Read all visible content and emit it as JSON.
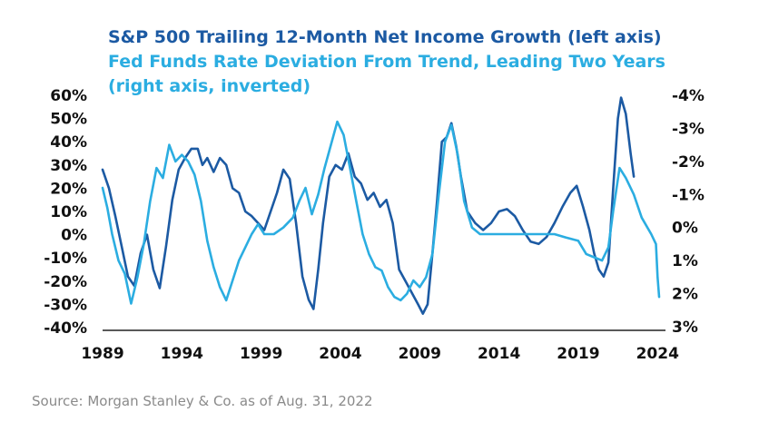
{
  "chart_data": {
    "type": "line",
    "title": [
      "S&P 500 Trailing 12-Month Net Income Growth (left axis)",
      "Fed Funds Rate Deviation From Trend, Leading Two Years",
      "(right axis, inverted)"
    ],
    "source": "Source: Morgan Stanley & Co. as of Aug. 31, 2022",
    "left_axis": {
      "ticks": [
        "60%",
        "50%",
        "40%",
        "30%",
        "20%",
        "10%",
        "0%",
        "-10%",
        "-20%",
        "-30%",
        "-40%"
      ],
      "range": [
        -40,
        60
      ],
      "unit": "%"
    },
    "right_axis": {
      "ticks": [
        "-4%",
        "-3%",
        "-2%",
        "-1%",
        "0%",
        "1%",
        "2%",
        "3%"
      ],
      "range": [
        -4,
        3
      ],
      "inverted": true,
      "unit": "%"
    },
    "x_axis": {
      "ticks": [
        "1989",
        "1994",
        "1999",
        "2004",
        "2009",
        "2014",
        "2019",
        "2024"
      ],
      "range": [
        1989,
        2024.5
      ]
    },
    "grid": false,
    "legend": "title-colored",
    "colors": {
      "series1": "#1c5aa3",
      "series2": "#2bade1",
      "text": "#111111",
      "source": "#8a8a8a"
    },
    "series": [
      {
        "name": "S&P 500 Trailing 12-Month Net Income Growth",
        "axis": "left",
        "color": "#1c5aa3",
        "points": [
          [
            1989.0,
            28
          ],
          [
            1989.4,
            20
          ],
          [
            1989.8,
            8
          ],
          [
            1990.2,
            -5
          ],
          [
            1990.6,
            -18
          ],
          [
            1991.0,
            -22
          ],
          [
            1991.4,
            -8
          ],
          [
            1991.8,
            0
          ],
          [
            1992.2,
            -15
          ],
          [
            1992.6,
            -23
          ],
          [
            1993.0,
            -5
          ],
          [
            1993.4,
            15
          ],
          [
            1993.8,
            28
          ],
          [
            1994.2,
            33
          ],
          [
            1994.6,
            37
          ],
          [
            1995.0,
            37
          ],
          [
            1995.3,
            30
          ],
          [
            1995.6,
            33
          ],
          [
            1996.0,
            27
          ],
          [
            1996.4,
            33
          ],
          [
            1996.8,
            30
          ],
          [
            1997.2,
            20
          ],
          [
            1997.6,
            18
          ],
          [
            1998.0,
            10
          ],
          [
            1998.4,
            8
          ],
          [
            1998.8,
            5
          ],
          [
            1999.2,
            2
          ],
          [
            1999.6,
            10
          ],
          [
            2000.0,
            18
          ],
          [
            2000.4,
            28
          ],
          [
            2000.8,
            24
          ],
          [
            2001.2,
            5
          ],
          [
            2001.6,
            -18
          ],
          [
            2002.0,
            -28
          ],
          [
            2002.3,
            -32
          ],
          [
            2002.6,
            -15
          ],
          [
            2002.9,
            5
          ],
          [
            2003.3,
            25
          ],
          [
            2003.7,
            30
          ],
          [
            2004.1,
            28
          ],
          [
            2004.5,
            35
          ],
          [
            2004.9,
            25
          ],
          [
            2005.3,
            22
          ],
          [
            2005.7,
            15
          ],
          [
            2006.1,
            18
          ],
          [
            2006.5,
            12
          ],
          [
            2006.9,
            15
          ],
          [
            2007.3,
            5
          ],
          [
            2007.7,
            -15
          ],
          [
            2008.1,
            -20
          ],
          [
            2008.5,
            -25
          ],
          [
            2008.9,
            -30
          ],
          [
            2009.2,
            -34
          ],
          [
            2009.5,
            -30
          ],
          [
            2009.8,
            -8
          ],
          [
            2010.1,
            15
          ],
          [
            2010.4,
            40
          ],
          [
            2010.7,
            42
          ],
          [
            2011.0,
            48
          ],
          [
            2011.3,
            38
          ],
          [
            2011.6,
            25
          ],
          [
            2012.0,
            10
          ],
          [
            2012.5,
            5
          ],
          [
            2013.0,
            2
          ],
          [
            2013.5,
            5
          ],
          [
            2014.0,
            10
          ],
          [
            2014.5,
            11
          ],
          [
            2015.0,
            8
          ],
          [
            2015.5,
            2
          ],
          [
            2016.0,
            -3
          ],
          [
            2016.5,
            -4
          ],
          [
            2017.0,
            -1
          ],
          [
            2017.5,
            5
          ],
          [
            2018.0,
            12
          ],
          [
            2018.5,
            18
          ],
          [
            2018.9,
            21
          ],
          [
            2019.3,
            12
          ],
          [
            2019.7,
            2
          ],
          [
            2020.0,
            -8
          ],
          [
            2020.3,
            -15
          ],
          [
            2020.6,
            -18
          ],
          [
            2020.9,
            -12
          ],
          [
            2021.2,
            20
          ],
          [
            2021.5,
            50
          ],
          [
            2021.7,
            59
          ],
          [
            2022.0,
            52
          ],
          [
            2022.3,
            35
          ],
          [
            2022.5,
            25
          ]
        ]
      },
      {
        "name": "Fed Funds Rate Deviation From Trend, Leading Two Years",
        "axis": "right",
        "color": "#2bade1",
        "points": [
          [
            1989.0,
            -1.2
          ],
          [
            1989.3,
            -0.6
          ],
          [
            1989.6,
            0.2
          ],
          [
            1990.0,
            1.0
          ],
          [
            1990.4,
            1.4
          ],
          [
            1990.8,
            2.3
          ],
          [
            1991.2,
            1.5
          ],
          [
            1991.6,
            0.5
          ],
          [
            1992.0,
            -0.8
          ],
          [
            1992.4,
            -1.8
          ],
          [
            1992.8,
            -1.5
          ],
          [
            1993.2,
            -2.5
          ],
          [
            1993.6,
            -2.0
          ],
          [
            1994.0,
            -2.2
          ],
          [
            1994.4,
            -2.0
          ],
          [
            1994.8,
            -1.6
          ],
          [
            1995.2,
            -0.8
          ],
          [
            1995.6,
            0.4
          ],
          [
            1996.0,
            1.2
          ],
          [
            1996.4,
            1.8
          ],
          [
            1996.8,
            2.2
          ],
          [
            1997.2,
            1.6
          ],
          [
            1997.6,
            1.0
          ],
          [
            1998.0,
            0.6
          ],
          [
            1998.4,
            0.2
          ],
          [
            1998.8,
            -0.1
          ],
          [
            1999.2,
            0.2
          ],
          [
            1999.8,
            0.2
          ],
          [
            2000.4,
            0.0
          ],
          [
            2001.0,
            -0.3
          ],
          [
            2001.4,
            -0.8
          ],
          [
            2001.8,
            -1.2
          ],
          [
            2002.2,
            -0.4
          ],
          [
            2002.6,
            -1.0
          ],
          [
            2003.0,
            -1.8
          ],
          [
            2003.4,
            -2.5
          ],
          [
            2003.8,
            -3.2
          ],
          [
            2004.2,
            -2.8
          ],
          [
            2004.6,
            -1.8
          ],
          [
            2005.0,
            -0.8
          ],
          [
            2005.4,
            0.2
          ],
          [
            2005.8,
            0.8
          ],
          [
            2006.2,
            1.2
          ],
          [
            2006.6,
            1.3
          ],
          [
            2007.0,
            1.8
          ],
          [
            2007.4,
            2.1
          ],
          [
            2007.8,
            2.2
          ],
          [
            2008.2,
            2.0
          ],
          [
            2008.6,
            1.6
          ],
          [
            2009.0,
            1.8
          ],
          [
            2009.4,
            1.5
          ],
          [
            2009.8,
            0.8
          ],
          [
            2010.2,
            -1.0
          ],
          [
            2010.6,
            -2.6
          ],
          [
            2011.0,
            -3.1
          ],
          [
            2011.4,
            -2.2
          ],
          [
            2011.8,
            -0.8
          ],
          [
            2012.3,
            0.0
          ],
          [
            2012.8,
            0.2
          ],
          [
            2014.0,
            0.2
          ],
          [
            2016.0,
            0.2
          ],
          [
            2017.5,
            0.2
          ],
          [
            2018.2,
            0.3
          ],
          [
            2019.0,
            0.4
          ],
          [
            2019.5,
            0.8
          ],
          [
            2020.0,
            0.9
          ],
          [
            2020.5,
            1.0
          ],
          [
            2020.9,
            0.6
          ],
          [
            2021.2,
            -0.5
          ],
          [
            2021.6,
            -1.8
          ],
          [
            2022.0,
            -1.5
          ],
          [
            2022.5,
            -1.0
          ],
          [
            2023.0,
            -0.3
          ],
          [
            2023.6,
            0.2
          ],
          [
            2023.9,
            0.5
          ],
          [
            2024.0,
            1.5
          ],
          [
            2024.1,
            2.1
          ]
        ]
      }
    ]
  }
}
